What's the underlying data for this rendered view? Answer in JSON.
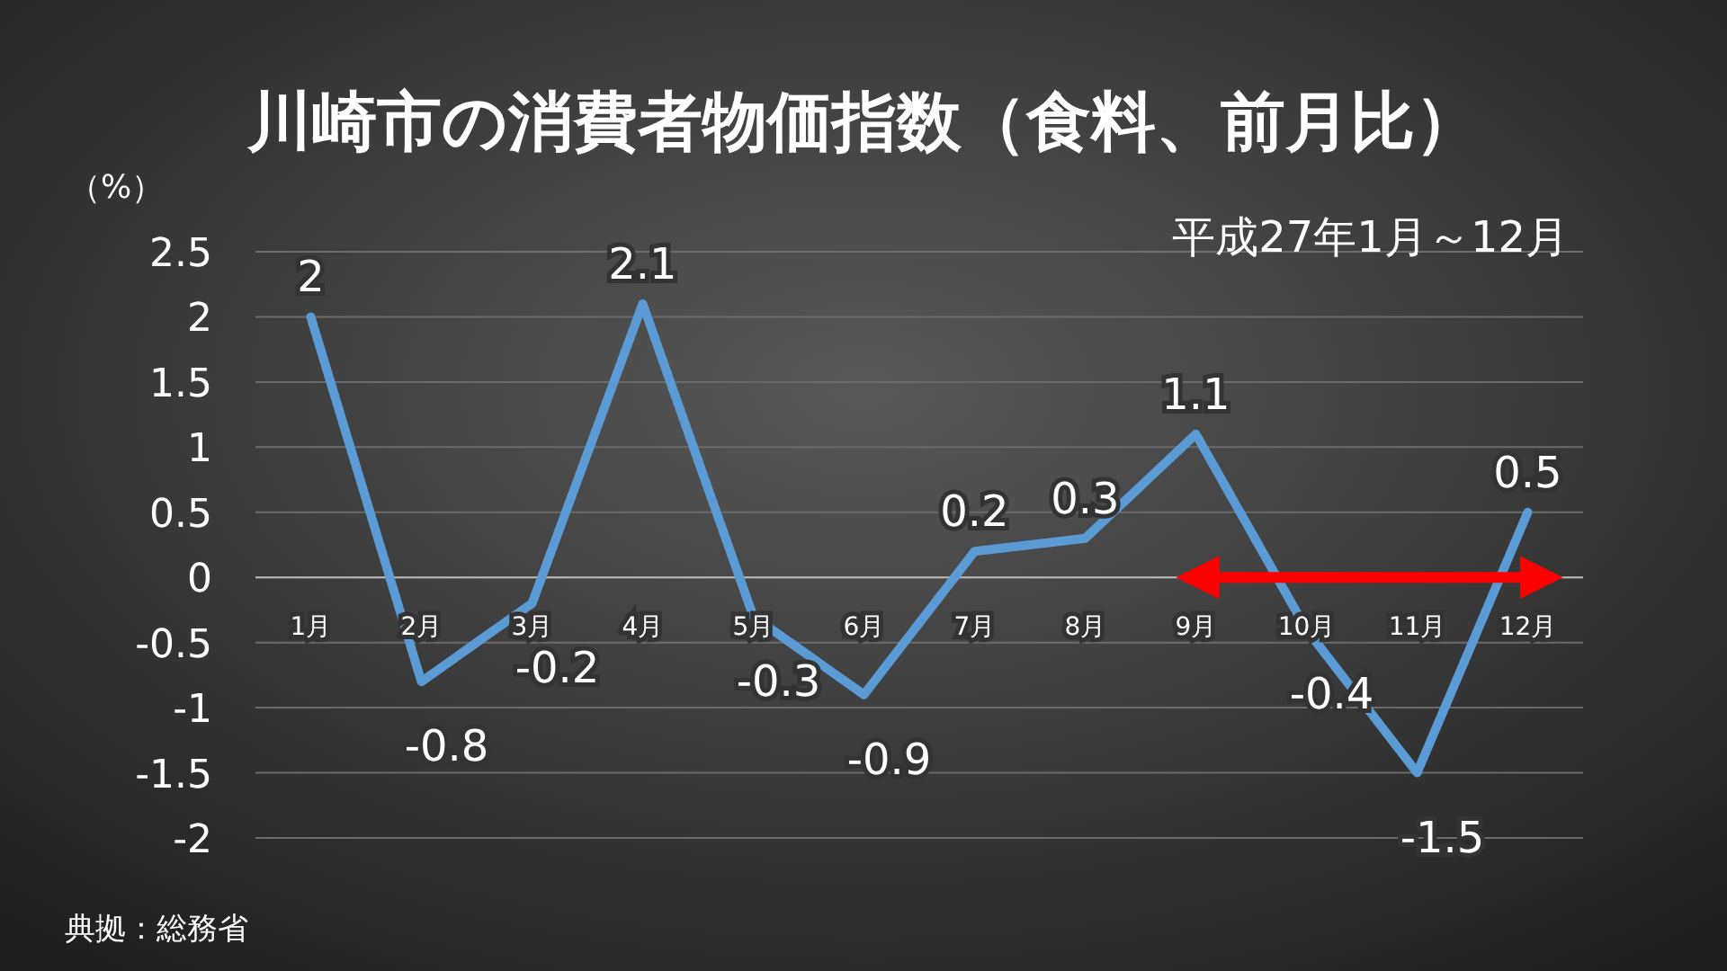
{
  "chart_data": {
    "type": "line",
    "title": "川崎市の消費者物価指数（食料、前月比）",
    "subtitle": "平成27年1月～12月",
    "ylabel": "（%）",
    "annotations": [
      "典拠：総務省"
    ],
    "categories": [
      "1月",
      "2月",
      "3月",
      "4月",
      "5月",
      "6月",
      "7月",
      "8月",
      "9月",
      "10月",
      "11月",
      "12月"
    ],
    "series": [
      {
        "color": "#5b9bd5",
        "values": [
          2,
          -0.8,
          -0.2,
          2.1,
          -0.3,
          -0.9,
          0.2,
          0.3,
          1.1,
          -0.4,
          -1.5,
          0.5
        ]
      }
    ],
    "ylim": [
      -2,
      2.5
    ],
    "yticks": [
      -2,
      -1.5,
      -1,
      -0.5,
      0,
      0.5,
      1,
      1.5,
      2,
      2.5
    ],
    "grid": "y",
    "data_labels": true,
    "marker": "none",
    "line_style": "solid"
  }
}
